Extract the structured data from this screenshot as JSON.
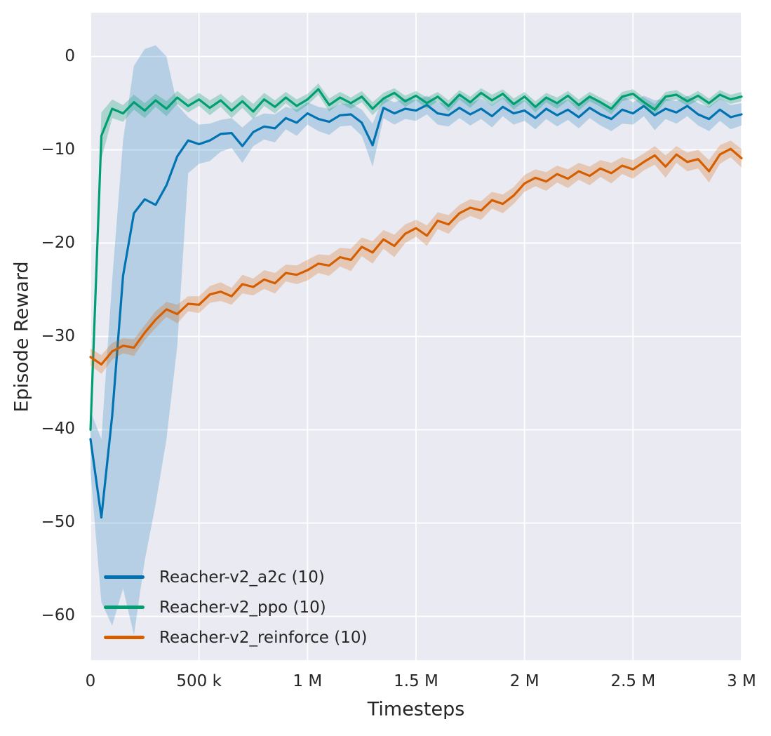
{
  "figure": {
    "background": "#ffffff",
    "plot_background": "#eaeaf2",
    "grid_color": "#ffffff",
    "text_color": "#262626"
  },
  "axes": {
    "x": {
      "label": "Timesteps",
      "ticks": [
        "0",
        "500 k",
        "1 M",
        "1.5 M",
        "2 M",
        "2.5 M",
        "3 M"
      ],
      "tick_values": [
        0,
        500000,
        1000000,
        1500000,
        2000000,
        2500000,
        3000000
      ]
    },
    "y": {
      "label": "Episode Reward",
      "ticks": [
        "0",
        "−10",
        "−20",
        "−30",
        "−40",
        "−50",
        "−60"
      ],
      "tick_values": [
        0,
        -10,
        -20,
        -30,
        -40,
        -50,
        -60
      ]
    }
  },
  "legend": {
    "entries": [
      {
        "label": "Reacher-v2_a2c (10)",
        "color": "#0173b2"
      },
      {
        "label": "Reacher-v2_ppo (10)",
        "color": "#029e73"
      },
      {
        "label": "Reacher-v2_reinforce (10)",
        "color": "#d55e00"
      }
    ]
  },
  "chart_data": {
    "type": "line",
    "title": "",
    "xlabel": "Timesteps",
    "ylabel": "Episode Reward",
    "xlim": [
      0,
      3000000
    ],
    "ylim": [
      -64.7,
      4.7
    ],
    "grid": true,
    "legend_position": "lower left",
    "x": [
      0,
      50000,
      100000,
      150000,
      200000,
      250000,
      300000,
      350000,
      400000,
      450000,
      500000,
      550000,
      600000,
      650000,
      700000,
      750000,
      800000,
      850000,
      900000,
      950000,
      1000000,
      1050000,
      1100000,
      1150000,
      1200000,
      1250000,
      1300000,
      1350000,
      1400000,
      1450000,
      1500000,
      1550000,
      1600000,
      1650000,
      1700000,
      1750000,
      1800000,
      1850000,
      1900000,
      1950000,
      2000000,
      2050000,
      2100000,
      2150000,
      2200000,
      2250000,
      2300000,
      2350000,
      2400000,
      2450000,
      2500000,
      2550000,
      2600000,
      2650000,
      2700000,
      2750000,
      2800000,
      2850000,
      2900000,
      2950000,
      3000000
    ],
    "series": [
      {
        "name": "Reacher-v2_a2c (10)",
        "color": "#0173b2",
        "band_alpha": 0.22,
        "mean": [
          -41.0,
          -49.4,
          -38.5,
          -23.5,
          -16.8,
          -15.3,
          -15.9,
          -13.8,
          -10.7,
          -9.0,
          -9.4,
          -9.0,
          -8.3,
          -8.2,
          -9.6,
          -8.1,
          -7.5,
          -7.7,
          -6.6,
          -7.1,
          -6.1,
          -6.7,
          -7.0,
          -6.3,
          -6.2,
          -7.1,
          -9.5,
          -5.5,
          -6.1,
          -5.6,
          -5.8,
          -5.2,
          -6.1,
          -6.3,
          -5.5,
          -6.2,
          -5.6,
          -6.4,
          -5.4,
          -6.1,
          -5.8,
          -6.6,
          -5.6,
          -6.3,
          -5.7,
          -6.5,
          -5.5,
          -6.2,
          -6.7,
          -5.7,
          -6.1,
          -5.3,
          -6.3,
          -5.6,
          -6.0,
          -5.3,
          -6.2,
          -6.7,
          -5.7,
          -6.5,
          -6.2
        ],
        "lo": [
          -44.5,
          -58.5,
          -61.0,
          -57.0,
          -62.0,
          -54.0,
          -48.0,
          -41.0,
          -31.0,
          -12.5,
          -11.5,
          -11.2,
          -10.2,
          -9.8,
          -11.4,
          -9.6,
          -8.9,
          -9.2,
          -7.8,
          -8.5,
          -7.3,
          -8.0,
          -8.4,
          -7.5,
          -7.4,
          -8.5,
          -11.8,
          -6.6,
          -7.3,
          -6.7,
          -6.9,
          -6.2,
          -7.3,
          -7.5,
          -6.6,
          -7.4,
          -6.7,
          -7.6,
          -6.4,
          -7.3,
          -6.9,
          -7.8,
          -6.7,
          -7.5,
          -6.8,
          -7.7,
          -6.6,
          -7.4,
          -8.0,
          -7.2,
          -7.3,
          -6.4,
          -7.9,
          -6.7,
          -7.2,
          -6.4,
          -7.4,
          -8.0,
          -6.9,
          -7.8,
          -7.4
        ],
        "hi": [
          -38.0,
          -41.0,
          -24.0,
          -9.0,
          -1.0,
          0.8,
          1.2,
          0.0,
          -5.2,
          -6.5,
          -7.3,
          -7.2,
          -6.8,
          -6.6,
          -7.6,
          -6.6,
          -6.1,
          -6.2,
          -5.4,
          -5.7,
          -4.9,
          -5.4,
          -5.6,
          -5.1,
          -5.0,
          -5.7,
          -7.2,
          -4.4,
          -4.9,
          -4.5,
          -4.7,
          -4.2,
          -4.9,
          -5.1,
          -4.4,
          -5.0,
          -4.5,
          -5.2,
          -4.4,
          -4.9,
          -4.7,
          -5.4,
          -4.5,
          -5.1,
          -4.6,
          -5.3,
          -4.4,
          -5.0,
          -5.4,
          -4.2,
          -4.9,
          -4.2,
          -4.7,
          -4.5,
          -4.8,
          -4.2,
          -5.0,
          -5.4,
          -4.5,
          -5.2,
          -5.0
        ]
      },
      {
        "name": "Reacher-v2_ppo (10)",
        "color": "#029e73",
        "band_alpha": 0.28,
        "mean": [
          -40.0,
          -8.5,
          -5.6,
          -6.1,
          -4.9,
          -5.8,
          -4.7,
          -5.6,
          -4.4,
          -5.3,
          -4.6,
          -5.5,
          -4.7,
          -5.8,
          -4.8,
          -5.9,
          -4.6,
          -5.4,
          -4.4,
          -5.3,
          -4.6,
          -3.5,
          -5.2,
          -4.4,
          -5.0,
          -4.3,
          -5.6,
          -4.5,
          -3.9,
          -4.8,
          -4.2,
          -5.0,
          -4.3,
          -5.3,
          -4.1,
          -4.9,
          -3.9,
          -4.7,
          -4.0,
          -5.1,
          -4.3,
          -5.4,
          -4.4,
          -5.0,
          -4.2,
          -5.2,
          -4.3,
          -4.9,
          -5.6,
          -4.3,
          -4.0,
          -4.9,
          -5.7,
          -4.3,
          -4.1,
          -4.8,
          -4.2,
          -5.0,
          -4.1,
          -4.6,
          -4.3
        ],
        "band": [
          1.5,
          2.5,
          1.0,
          0.9,
          0.8,
          0.8,
          0.7,
          0.8,
          0.7,
          0.7,
          0.7,
          0.8,
          0.7,
          0.8,
          0.7,
          0.8,
          0.7,
          0.7,
          0.6,
          0.7,
          0.6,
          0.6,
          0.7,
          0.6,
          0.6,
          0.6,
          0.7,
          0.6,
          0.5,
          0.6,
          0.5,
          0.6,
          0.5,
          0.6,
          0.5,
          0.6,
          0.5,
          0.6,
          0.5,
          0.6,
          0.5,
          0.6,
          0.5,
          0.6,
          0.5,
          0.6,
          0.5,
          0.5,
          0.6,
          0.5,
          0.5,
          0.5,
          0.6,
          0.5,
          0.5,
          0.5,
          0.5,
          0.5,
          0.5,
          0.5,
          0.5
        ]
      },
      {
        "name": "Reacher-v2_reinforce (10)",
        "color": "#d55e00",
        "band_alpha": 0.25,
        "mean": [
          -32.2,
          -33.0,
          -31.6,
          -31.0,
          -31.2,
          -29.6,
          -28.2,
          -27.1,
          -27.6,
          -26.5,
          -26.6,
          -25.5,
          -25.2,
          -25.7,
          -24.4,
          -24.7,
          -23.9,
          -24.3,
          -23.2,
          -23.4,
          -22.9,
          -22.2,
          -22.4,
          -21.5,
          -21.8,
          -20.4,
          -21.0,
          -19.6,
          -20.3,
          -19.0,
          -18.4,
          -19.2,
          -17.6,
          -18.0,
          -16.8,
          -16.2,
          -16.5,
          -15.4,
          -15.8,
          -14.9,
          -13.6,
          -13.0,
          -13.4,
          -12.6,
          -13.1,
          -12.3,
          -12.8,
          -12.0,
          -12.5,
          -11.7,
          -12.1,
          -11.3,
          -10.6,
          -11.8,
          -10.5,
          -11.3,
          -11.0,
          -12.3,
          -10.5,
          -9.9,
          -10.9
        ],
        "band": [
          0.9,
          1.0,
          0.9,
          0.8,
          0.9,
          0.8,
          0.9,
          0.8,
          1.0,
          0.8,
          0.9,
          0.9,
          1.0,
          0.9,
          1.0,
          0.9,
          1.0,
          1.1,
          0.9,
          1.0,
          1.1,
          1.0,
          1.1,
          1.0,
          1.2,
          1.0,
          1.2,
          1.0,
          1.2,
          1.0,
          0.9,
          1.1,
          0.9,
          1.0,
          0.9,
          0.9,
          1.0,
          0.9,
          1.0,
          0.9,
          0.9,
          0.9,
          1.0,
          0.9,
          1.0,
          0.9,
          1.0,
          0.9,
          1.1,
          0.9,
          1.0,
          0.9,
          1.0,
          1.2,
          0.9,
          1.0,
          1.0,
          1.2,
          1.0,
          0.9,
          1.0
        ]
      }
    ]
  }
}
